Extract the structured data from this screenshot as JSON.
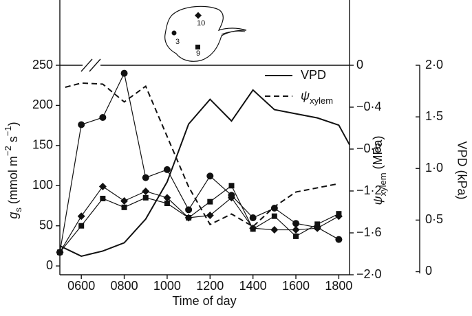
{
  "chart_data": {
    "type": "line",
    "xlabel": "Time of day",
    "xlim": [
      500,
      1850
    ],
    "xticks": [
      {
        "value": 600,
        "label": "0600"
      },
      {
        "value": 800,
        "label": "0800"
      },
      {
        "value": 1000,
        "label": "1000"
      },
      {
        "value": 1200,
        "label": "1200"
      },
      {
        "value": 1400,
        "label": "1400"
      },
      {
        "value": 1600,
        "label": "1600"
      },
      {
        "value": 1800,
        "label": "1800"
      }
    ],
    "ylabel": [
      {
        "text": "g",
        "style": "italic"
      },
      {
        "text": "s",
        "style": "sub"
      },
      {
        "text": " (mmol m",
        "style": "normal"
      },
      {
        "text": "−2",
        "style": "sup"
      },
      {
        "text": " s",
        "style": "normal"
      },
      {
        "text": "−1",
        "style": "sup"
      },
      {
        "text": ")",
        "style": "normal"
      }
    ],
    "ylim": [
      -11,
      250
    ],
    "yticks": [
      0,
      50,
      100,
      150,
      200,
      250
    ],
    "y2label": [
      {
        "text": "ψ",
        "style": "italic"
      },
      {
        "text": "xylem",
        "style": "sub"
      },
      {
        "text": " (MPa)",
        "style": "normal"
      }
    ],
    "y2lim": [
      -2.0,
      0
    ],
    "y2ticks": [
      {
        "value": -2.0,
        "label": "−2·0"
      },
      {
        "value": -1.6,
        "label": "−1·6"
      },
      {
        "value": -1.2,
        "label": "−1·2"
      },
      {
        "value": -0.8,
        "label": "−0·8"
      },
      {
        "value": -0.4,
        "label": "−0·4"
      },
      0
    ],
    "y3label": "VPD (kPa)",
    "y3lim": [
      -0.03,
      2.0
    ],
    "y3ticks": [
      0,
      {
        "value": 0.5,
        "label": "0·5"
      },
      {
        "value": 1.0,
        "label": "1·0"
      },
      {
        "value": 1.5,
        "label": "1·5"
      },
      {
        "value": 2.0,
        "label": "2·0"
      }
    ],
    "series": [
      {
        "name": "3",
        "marker": "circle",
        "color": "#111",
        "axis": "y",
        "x": [
          500,
          600,
          700,
          800,
          900,
          1000,
          1100,
          1200,
          1300,
          1400,
          1500,
          1600,
          1700,
          1800
        ],
        "values": [
          17,
          176,
          185,
          240,
          110,
          120,
          70,
          112,
          88,
          60,
          72,
          53,
          48,
          33
        ]
      },
      {
        "name": "10",
        "marker": "diamond",
        "color": "#111",
        "axis": "y",
        "x": [
          500,
          600,
          700,
          800,
          900,
          1000,
          1100,
          1200,
          1300,
          1400,
          1500,
          1600,
          1700,
          1800
        ],
        "values": [
          17,
          62,
          99,
          81,
          93,
          85,
          60,
          63,
          85,
          47,
          45,
          45,
          47,
          62
        ]
      },
      {
        "name": "9",
        "marker": "square",
        "color": "#111",
        "axis": "y",
        "x": [
          500,
          600,
          700,
          800,
          900,
          1000,
          1100,
          1200,
          1300,
          1400,
          1500,
          1600,
          1700,
          1800
        ],
        "values": [
          17,
          50,
          84,
          73,
          85,
          78,
          60,
          80,
          100,
          46,
          62,
          37,
          52,
          65
        ]
      },
      {
        "name": "VPD",
        "dash": "solid",
        "color": "#111",
        "axis": "y3",
        "x": [
          500,
          600,
          700,
          800,
          900,
          1000,
          1100,
          1200,
          1300,
          1400,
          1500,
          1600,
          1700,
          1800,
          1850
        ],
        "values": [
          0.25,
          0.15,
          0.2,
          0.28,
          0.51,
          0.87,
          1.43,
          1.67,
          1.46,
          1.76,
          1.57,
          1.53,
          1.49,
          1.42,
          1.23
        ]
      },
      {
        "name": "ψ",
        "name_subscript": "xylem",
        "dash": "dashed",
        "color": "#111",
        "axis": "y2",
        "x": [
          525,
          600,
          700,
          800,
          900,
          1000,
          1100,
          1200,
          1300,
          1400,
          1500,
          1600,
          1700,
          1800
        ],
        "values": [
          -0.21,
          -0.17,
          -0.18,
          -0.35,
          -0.2,
          -0.68,
          -1.16,
          -1.52,
          -1.42,
          -1.54,
          -1.35,
          -1.21,
          -1.17,
          -1.13
        ]
      }
    ]
  }
}
